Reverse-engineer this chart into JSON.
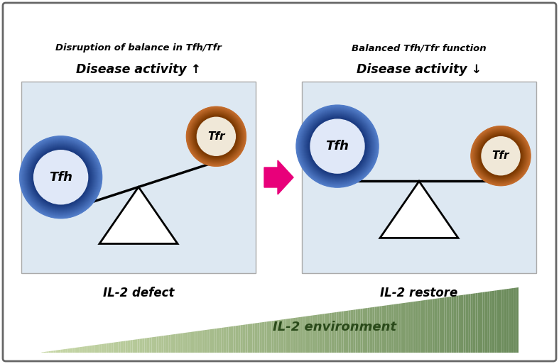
{
  "fig_width": 7.87,
  "fig_height": 5.13,
  "dpi": 100,
  "bg_color": "#ffffff",
  "border_color": "#666666",
  "panel_bg": "#dde8f2",
  "title1_line1": "Disruption of balance in Tfh/Tfr",
  "title1_line2": "Disease activity ↑",
  "title2_line1": "Balanced Tfh/Tfr function",
  "title2_line2": "Disease activity ↓",
  "label1": "IL-2 defect",
  "label2": "IL-2 restore",
  "arrow_label": "IL-2 environment",
  "tfh_outer_light": "#5580cc",
  "tfh_outer_dark": "#1a3a80",
  "tfh_inner": "#e0e8f8",
  "tfr_outer_light": "#c87030",
  "tfr_outer_dark": "#7a3800",
  "tfr_inner": "#f0e8d8",
  "arrow_color": "#e8007a",
  "green_light": "#c8d8a8",
  "green_dark": "#6a8a5a",
  "text_color": "#2a4a1a"
}
